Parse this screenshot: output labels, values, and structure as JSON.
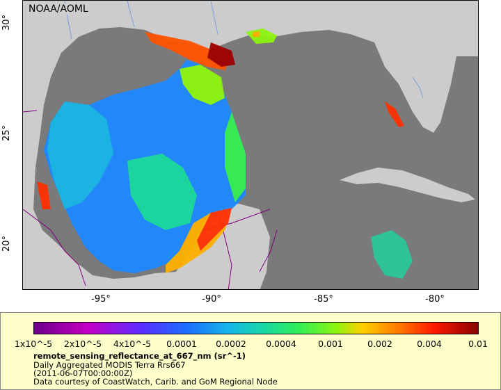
{
  "map": {
    "source_label": "NOAA/AOML",
    "lat_ticks": [
      "30°",
      "25°",
      "20°"
    ],
    "lon_ticks": [
      "-95°",
      "-90°",
      "-85°",
      "-80°"
    ],
    "colors": {
      "land": "#cccccc",
      "ocean_no_data": "#7a7a7a",
      "borders": "#800080",
      "rivers": "#7aa0d8"
    }
  },
  "legend": {
    "colorbar_labels": [
      "1x10^-5",
      "2x10^-5",
      "4x10^-5",
      "0.0001",
      "0.0002",
      "0.0004",
      "0.001",
      "0.002",
      "0.004",
      "0.01"
    ],
    "variable": "remote_sensing_reflectance_at_667_nm (sr^-1)",
    "dataset": "Daily Aggregated MODIS Terra Rrs667",
    "time": "(2011-06-07T00:00:00Z)",
    "credit": "Data courtesy of CoastWatch, Carib. and GoM Regional Node",
    "colors": [
      "#6b008a",
      "#c400c4",
      "#5b2dff",
      "#1e6bff",
      "#16b7e8",
      "#18d9a0",
      "#34ef53",
      "#8cf510",
      "#ffd000",
      "#ff7a00",
      "#ff1a00",
      "#8a0000"
    ]
  }
}
